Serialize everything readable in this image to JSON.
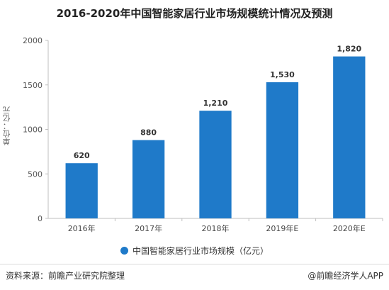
{
  "header": {
    "title": "2016-2020年中国智能家居行业市场规模统计情况及预测"
  },
  "chart_data": {
    "type": "bar",
    "categories": [
      "2016年",
      "2017年",
      "2018年",
      "2019年E",
      "2020年E"
    ],
    "series": [
      {
        "name": "中国智能家居行业市场规模（亿元）",
        "values": [
          620,
          880,
          1210,
          1530,
          1820
        ]
      }
    ],
    "value_labels": [
      "620",
      "880",
      "1,210",
      "1,530",
      "1,820"
    ],
    "ylabel": "单位：亿元",
    "ylim": [
      0,
      2000
    ],
    "yticks": [
      "0",
      "500",
      "1000",
      "1500",
      "2000"
    ],
    "grid": false,
    "legend_position": "bottom",
    "bar_color": "#1f7ac9"
  },
  "footer": {
    "source": "资料来源：前瞻产业研究院整理",
    "brand": "@前瞻经济学人APP"
  }
}
